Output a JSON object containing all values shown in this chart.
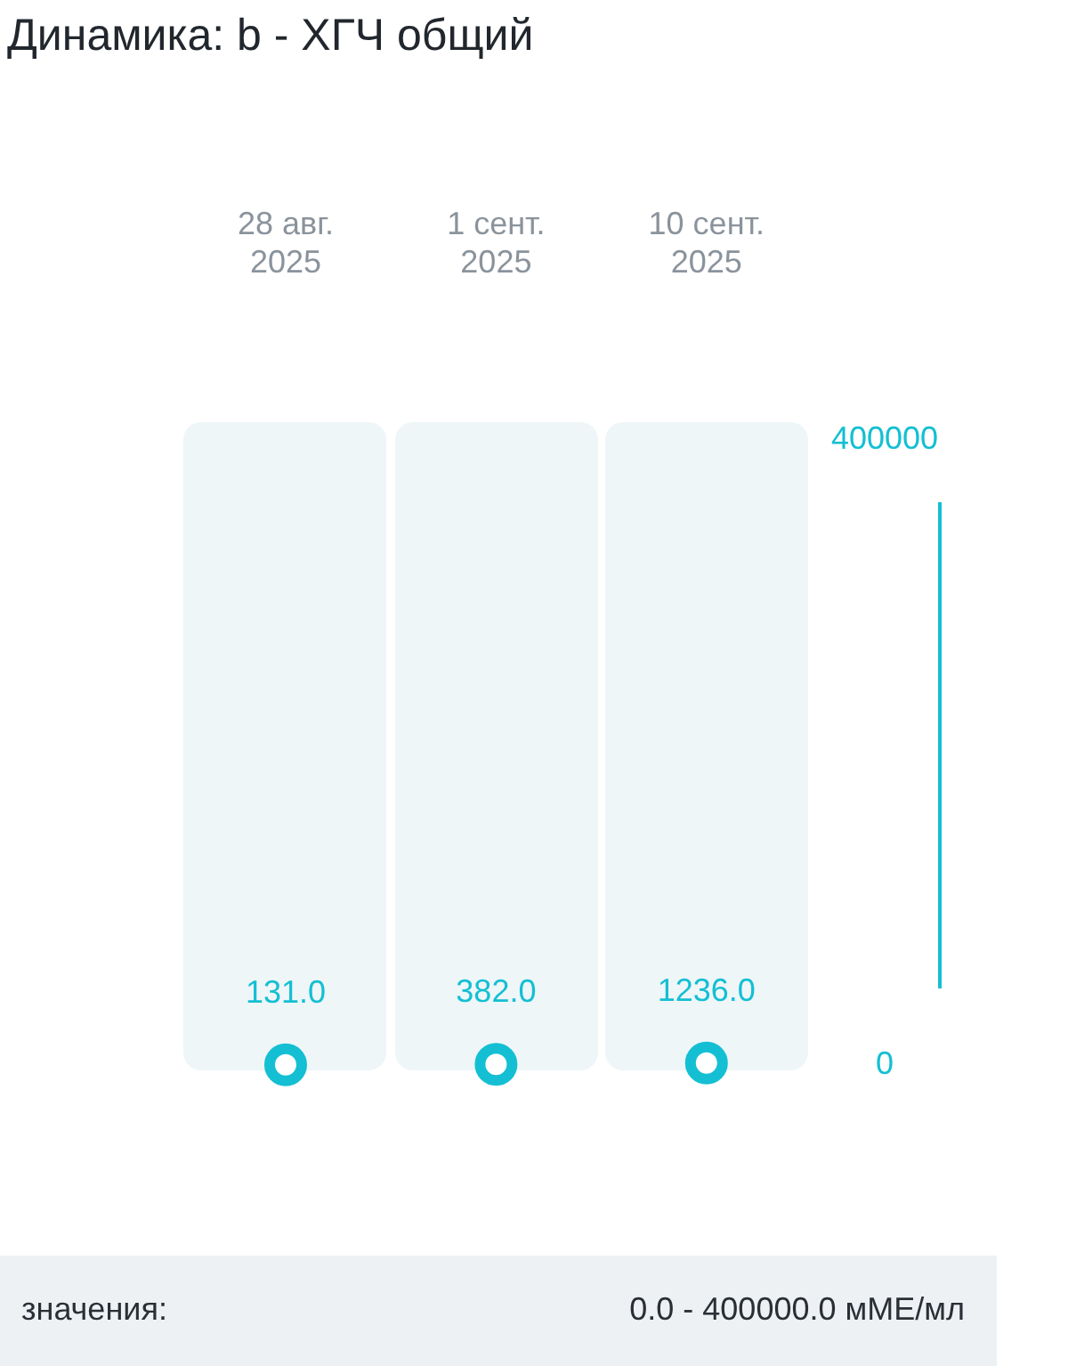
{
  "chart_data": {
    "type": "scatter",
    "title": "Динамика: b - ХГЧ общий",
    "categories": [
      "28 авг.\n2025",
      "1 сент.\n2025",
      "10 сент.\n2025"
    ],
    "values": [
      131.0,
      382.0,
      1236.0
    ],
    "value_labels": [
      "131.0",
      "382.0",
      "1236.0"
    ],
    "color": "#14bfd3",
    "marker": "circle",
    "ylim": [
      0,
      400000
    ],
    "yticks": [
      0,
      400000
    ],
    "annotations": [
      "значения:",
      "0.0 - 400000.0 мМЕ/мл"
    ]
  }
}
